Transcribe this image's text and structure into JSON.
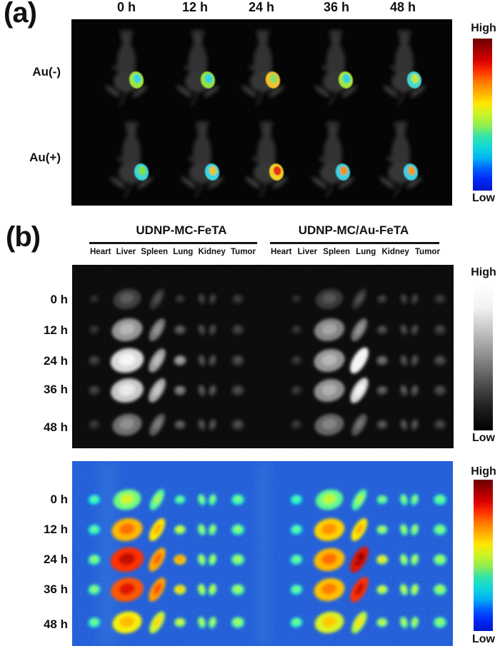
{
  "panel_a": {
    "label": "(a)",
    "time_labels": [
      "0 h",
      "12 h",
      "24 h",
      "36 h",
      "48 h"
    ],
    "row_labels": [
      "Au(-)",
      "Au(+)"
    ],
    "colorbar": {
      "high_label": "High",
      "low_label": "Low",
      "type": "jet",
      "gradient": [
        "#6e0000",
        "#a00000",
        "#d80000",
        "#ff3000",
        "#ff7800",
        "#ffb000",
        "#ffe800",
        "#c8f428",
        "#90ee50",
        "#34e2aa",
        "#10d8d8",
        "#00b4f4",
        "#0060ff",
        "#0028f8",
        "#0018c8"
      ]
    },
    "mice": [
      {
        "row": "Au(-)",
        "time": "0 h",
        "tumor_outer": "#9fe53c",
        "tumor_inner": "#38d8e0"
      },
      {
        "row": "Au(-)",
        "time": "12 h",
        "tumor_outer": "#93e23e",
        "tumor_inner": "#30d2e6"
      },
      {
        "row": "Au(-)",
        "time": "24 h",
        "tumor_outer": "#f2c22e",
        "tumor_inner": "#8ade62"
      },
      {
        "row": "Au(-)",
        "time": "36 h",
        "tumor_outer": "#a5e43a",
        "tumor_inner": "#36d2de"
      },
      {
        "row": "Au(-)",
        "time": "48 h",
        "tumor_outer": "#46d8cf",
        "tumor_inner": "#c3e63a"
      },
      {
        "row": "Au(+)",
        "time": "0 h",
        "tumor_outer": "#3ad6d6",
        "tumor_inner": "#7fdf48"
      },
      {
        "row": "Au(+)",
        "time": "12 h",
        "tumor_outer": "#3ed5e2",
        "tumor_inner": "#e6c436"
      },
      {
        "row": "Au(+)",
        "time": "24 h",
        "tumor_outer": "#f0d028",
        "tumor_inner": "#e53214"
      },
      {
        "row": "Au(+)",
        "time": "36 h",
        "tumor_outer": "#3ad0e0",
        "tumor_inner": "#ef9226"
      },
      {
        "row": "Au(+)",
        "time": "48 h",
        "tumor_outer": "#3ecfe0",
        "tumor_inner": "#ee9a2e"
      }
    ]
  },
  "panel_b": {
    "label": "(b)",
    "group_labels": [
      "UDNP-MC-FeTA",
      "UDNP-MC/Au-FeTA"
    ],
    "organ_labels": [
      "Heart",
      "Liver",
      "Spleen",
      "Lung",
      "Kidney",
      "Tumor"
    ],
    "time_labels": [
      "0 h",
      "12 h",
      "24 h",
      "36 h",
      "48 h"
    ],
    "grayscale_colorbar": {
      "high_label": "High",
      "low_label": "Low",
      "type": "grayscale",
      "gradient": [
        "#ffffff",
        "#f2f2f2",
        "#c0c0c0",
        "#8c8c8c",
        "#545454",
        "#222222",
        "#000000"
      ]
    },
    "jet_colorbar": {
      "high_label": "High",
      "low_label": "Low",
      "type": "jet",
      "gradient": [
        "#6e0000",
        "#a00000",
        "#d80000",
        "#ff3000",
        "#ff7800",
        "#ffb000",
        "#ffe800",
        "#c8f428",
        "#90ee50",
        "#34e2aa",
        "#10d8d8",
        "#00b4f4",
        "#0060ff",
        "#0028f8",
        "#0018c8"
      ]
    },
    "signal_intensity": [
      {
        "group": "UDNP-MC-FeTA",
        "rows": [
          {
            "time": "0 h",
            "values": [
              0.18,
              0.32,
              0.28,
              0.22,
              0.25,
              0.22
            ]
          },
          {
            "time": "12 h",
            "values": [
              0.2,
              0.6,
              0.5,
              0.35,
              0.28,
              0.25
            ]
          },
          {
            "time": "24 h",
            "values": [
              0.25,
              0.8,
              0.62,
              0.55,
              0.3,
              0.28
            ]
          },
          {
            "time": "36 h",
            "values": [
              0.25,
              0.75,
              0.65,
              0.45,
              0.32,
              0.28
            ]
          },
          {
            "time": "48 h",
            "values": [
              0.22,
              0.48,
              0.42,
              0.35,
              0.3,
              0.28
            ]
          }
        ]
      },
      {
        "group": "UDNP-MC/Au-FeTA",
        "rows": [
          {
            "time": "0 h",
            "values": [
              0.18,
              0.3,
              0.28,
              0.25,
              0.25,
              0.22
            ]
          },
          {
            "time": "12 h",
            "values": [
              0.2,
              0.55,
              0.5,
              0.3,
              0.28,
              0.25
            ]
          },
          {
            "time": "24 h",
            "values": [
              0.22,
              0.6,
              0.88,
              0.4,
              0.3,
              0.28
            ]
          },
          {
            "time": "36 h",
            "values": [
              0.22,
              0.58,
              0.8,
              0.35,
              0.32,
              0.28
            ]
          },
          {
            "time": "48 h",
            "values": [
              0.22,
              0.45,
              0.4,
              0.32,
              0.3,
              0.26
            ]
          }
        ]
      }
    ]
  }
}
